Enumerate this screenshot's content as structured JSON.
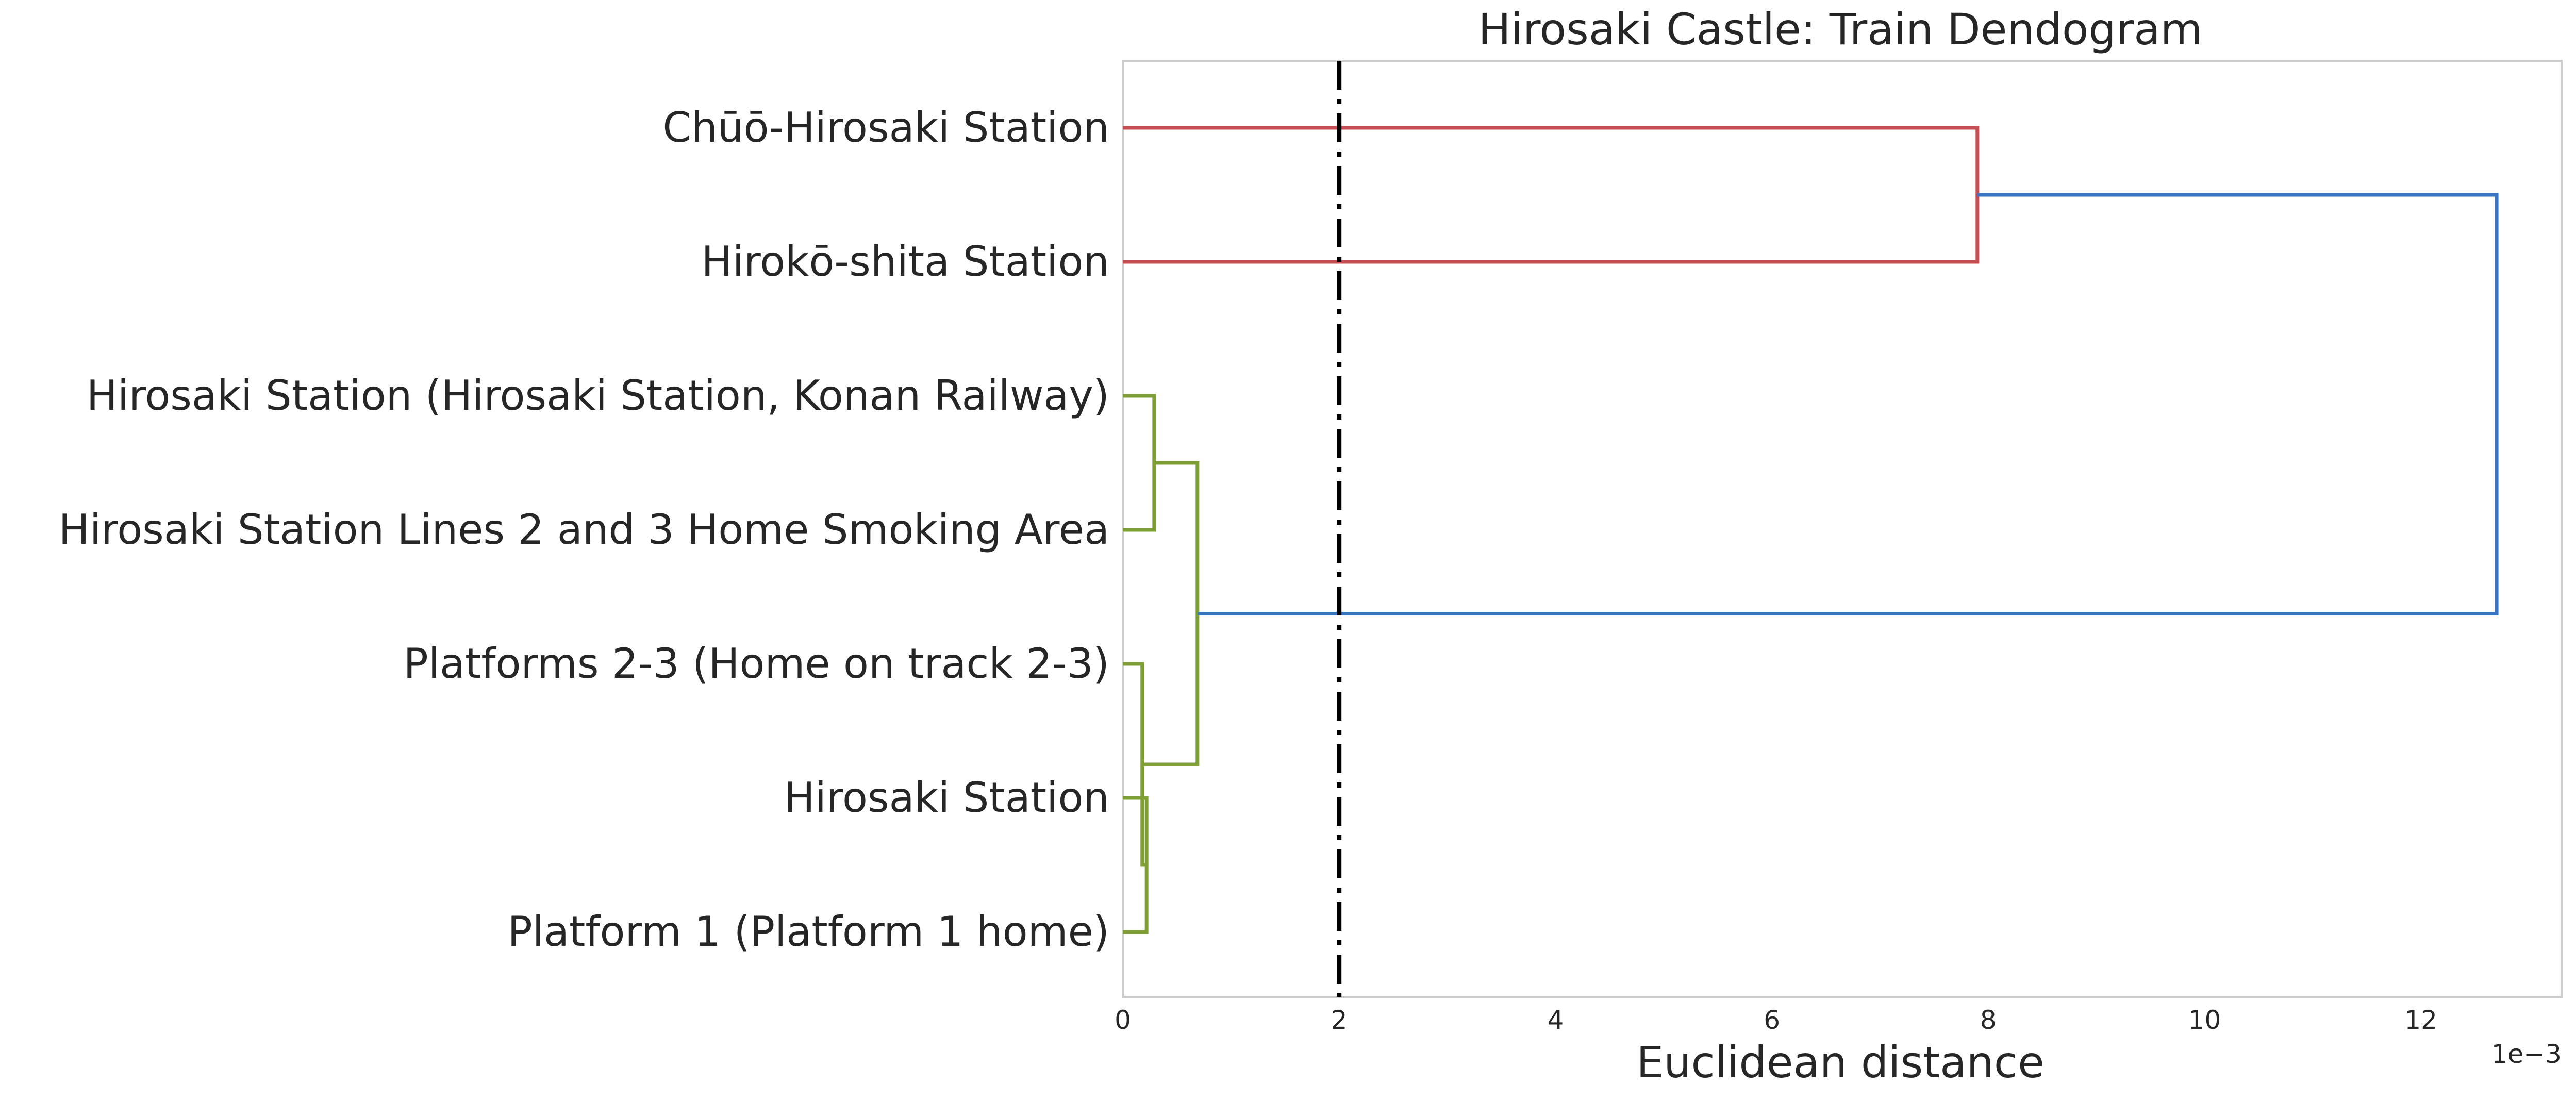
{
  "chart_data": {
    "type": "dendrogram",
    "title": "Hirosaki Castle: Train Dendogram",
    "xlabel": "Euclidean distance",
    "x_scale_label": "1e−3",
    "x_scale_factor": 0.001,
    "xlim": [
      0,
      13.3
    ],
    "xticks": [
      0,
      2,
      4,
      6,
      8,
      10,
      12
    ],
    "grid": false,
    "orientation": "left",
    "leaves": [
      "Chūō-Hirosaki Station",
      "Hirokō-shita Station",
      "Hirosaki Station (Hirosaki Station, Konan Railway)",
      "Hirosaki Station Lines 2 and 3 Home Smoking Area",
      "Platforms 2-3 (Home on track 2-3)",
      "Hirosaki Station",
      "Platform 1 (Platform 1 home)"
    ],
    "merges": [
      {
        "id": "m1",
        "left": "leaf:5",
        "right": "leaf:6",
        "distance": 0.22,
        "color": "#7d9f35"
      },
      {
        "id": "m2",
        "left": "leaf:4",
        "right": "m1",
        "distance": 0.18,
        "color": "#7d9f35"
      },
      {
        "id": "m3",
        "left": "leaf:2",
        "right": "leaf:3",
        "distance": 0.29,
        "color": "#7d9f35"
      },
      {
        "id": "m4",
        "left": "m3",
        "right": "m2",
        "distance": 0.69,
        "color": "#7d9f35"
      },
      {
        "id": "m5",
        "left": "leaf:0",
        "right": "leaf:1",
        "distance": 7.9,
        "color": "#c44e52"
      },
      {
        "id": "m6",
        "left": "m5",
        "right": "m4",
        "distance": 12.7,
        "color": "#3a75c4"
      }
    ],
    "threshold": {
      "value": 2,
      "style": "dash-dot",
      "color": "#000000"
    }
  }
}
